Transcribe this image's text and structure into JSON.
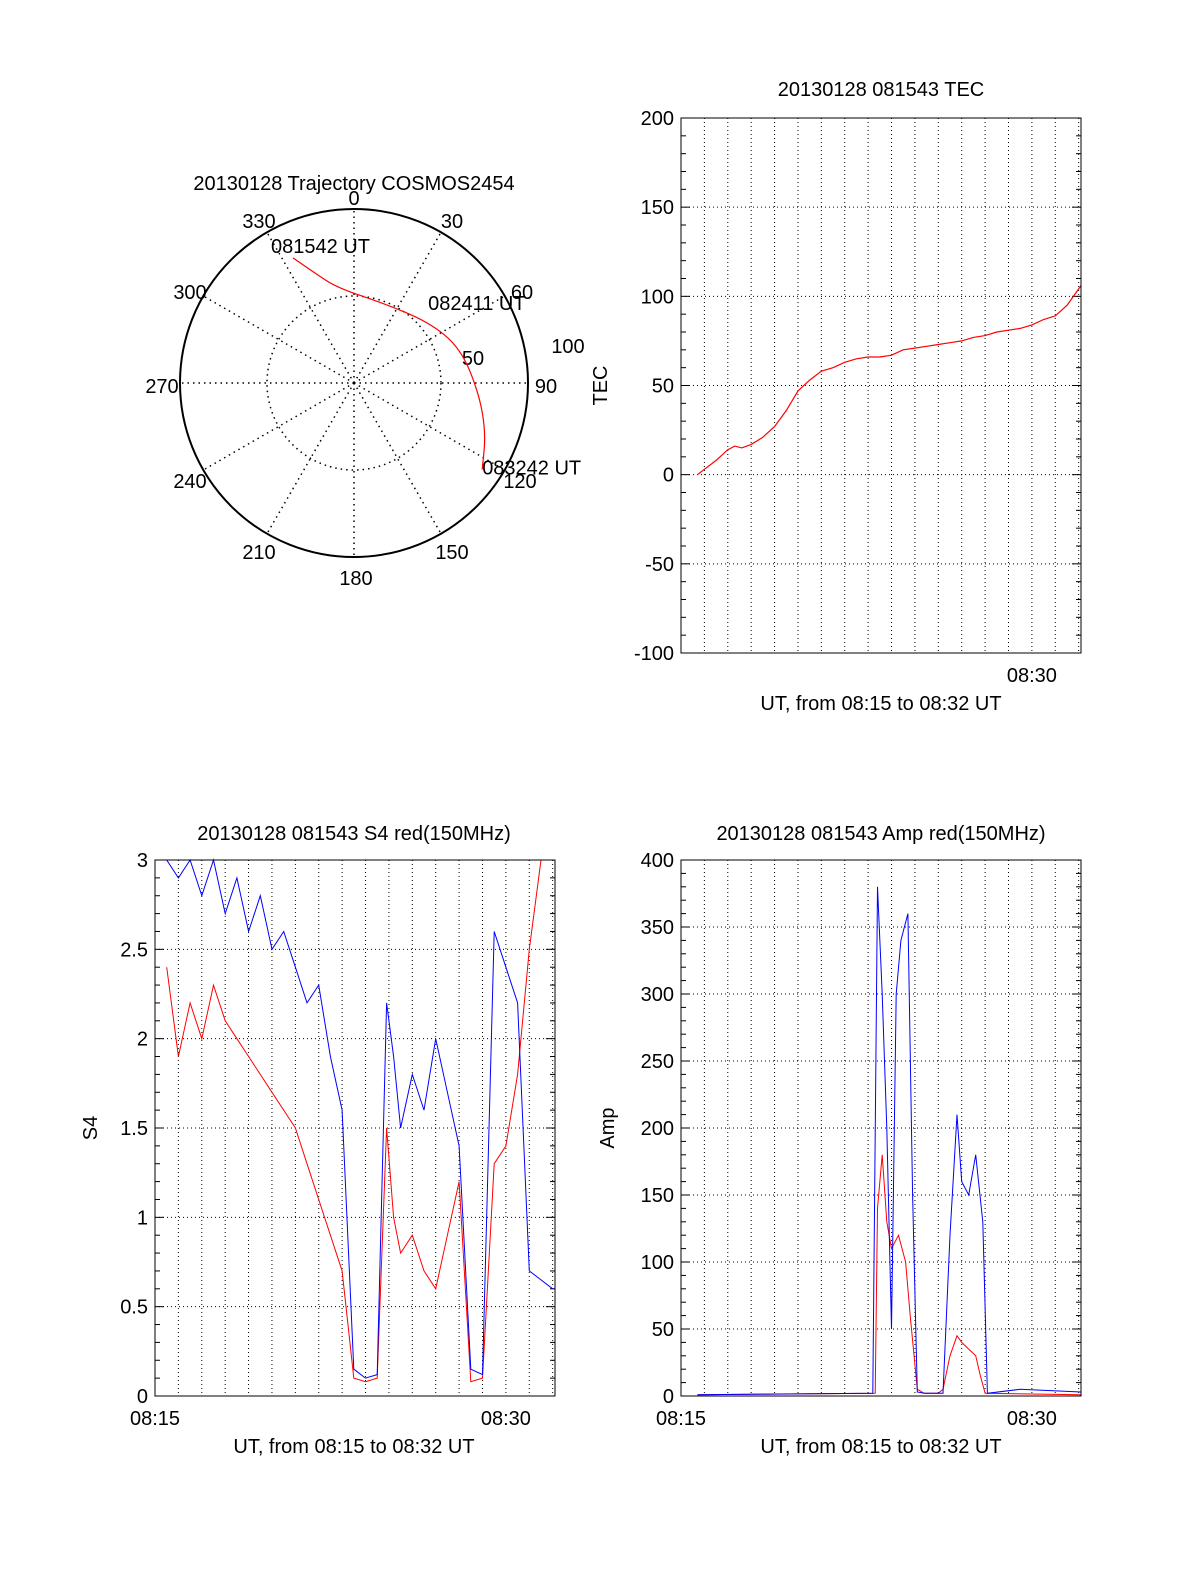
{
  "chart_data": [
    {
      "type": "polar",
      "title": "20130128 Trajectory COSMOS2454",
      "angle_labels": [
        "0",
        "30",
        "60",
        "90",
        "120",
        "150",
        "180",
        "210",
        "240",
        "270",
        "300",
        "330"
      ],
      "radius_labels": [
        "50",
        "100"
      ],
      "rlim": [
        0,
        100
      ],
      "series": [
        {
          "color": "#ff0000",
          "points": [
            {
              "azimuth": 334,
              "elevation": 18
            },
            {
              "azimuth": 340,
              "elevation": 29
            },
            {
              "azimuth": 350,
              "elevation": 40
            },
            {
              "azimuth": 18,
              "elevation": 46
            },
            {
              "azimuth": 51,
              "elevation": 40
            },
            {
              "azimuth": 72,
              "elevation": 32
            },
            {
              "azimuth": 95,
              "elevation": 25
            },
            {
              "azimuth": 111,
              "elevation": 17
            },
            {
              "azimuth": 124,
              "elevation": 10
            }
          ]
        }
      ],
      "annotations": [
        {
          "text": "081542 UT",
          "azimuth": 334,
          "elevation": 18
        },
        {
          "text": "082411 UT",
          "azimuth": 51,
          "elevation": 40
        },
        {
          "text": "083242 UT",
          "azimuth": 124,
          "elevation": 10
        }
      ],
      "grid": true
    },
    {
      "type": "line",
      "title": "20130128 081543 TEC",
      "xlabel": "UT, from 08:15 to 08:32 UT",
      "ylabel": "TEC",
      "xlim": [
        0,
        17.1
      ],
      "ylim": [
        -100,
        200
      ],
      "yticks": [
        200,
        150,
        100,
        50,
        0,
        -50,
        -100
      ],
      "xticks": [
        {
          "value": 15,
          "label": "08:30"
        }
      ],
      "grid": true,
      "series": [
        {
          "color": "#ff0000",
          "x": [
            0.7,
            1.0,
            1.5,
            2.0,
            2.3,
            2.6,
            3.0,
            3.5,
            4.0,
            4.5,
            5.0,
            5.5,
            6.0,
            6.5,
            7.0,
            7.5,
            8.0,
            8.5,
            9.0,
            9.5,
            10.0,
            10.5,
            11.0,
            11.5,
            12.0,
            12.5,
            13.0,
            13.5,
            14.0,
            14.5,
            15.0,
            15.5,
            16.0,
            16.5,
            17.1
          ],
          "y": [
            0,
            3,
            8,
            14,
            16,
            15,
            17,
            21,
            27,
            36,
            47,
            53,
            58,
            60,
            63,
            65,
            66,
            66,
            67,
            70,
            71,
            72,
            73,
            74,
            75,
            77,
            78,
            80,
            81,
            82,
            84,
            87,
            89,
            95,
            106
          ]
        }
      ]
    },
    {
      "type": "line",
      "title": "20130128 081543 S4 red(150MHz)",
      "xlabel": "UT, from 08:15 to 08:32 UT",
      "ylabel": "S4",
      "xlim": [
        0,
        17.1
      ],
      "ylim": [
        0,
        3
      ],
      "yticks": [
        3,
        2.5,
        2,
        1.5,
        1,
        0.5,
        0
      ],
      "ytick_labels": [
        "3",
        "2.5",
        "2",
        "1.5",
        "1",
        "0.5",
        "0"
      ],
      "xticks": [
        {
          "value": 0,
          "label": "08:15"
        },
        {
          "value": 15,
          "label": "08:30"
        }
      ],
      "grid": true,
      "series": [
        {
          "color": "#ff0000",
          "x": [
            0.5,
            1.0,
            1.5,
            2.0,
            2.5,
            3.0,
            3.5,
            4.0,
            4.5,
            5.0,
            5.5,
            6.0,
            6.5,
            7.0,
            7.5,
            8.0,
            8.5,
            9.0,
            9.5,
            9.9,
            10.2,
            10.5,
            11.0,
            11.5,
            12.0,
            12.5,
            13.0,
            13.5,
            14.0,
            14.5,
            15.0,
            15.5,
            16.0,
            16.5,
            17.0
          ],
          "y": [
            2.4,
            1.9,
            2.2,
            2.0,
            2.3,
            2.1,
            2.0,
            1.9,
            1.8,
            1.7,
            1.6,
            1.5,
            1.3,
            1.1,
            0.9,
            0.7,
            0.1,
            0.08,
            0.1,
            1.5,
            1.0,
            0.8,
            0.9,
            0.7,
            0.6,
            0.9,
            1.2,
            0.08,
            0.1,
            1.3,
            1.4,
            1.8,
            2.5,
            3.0,
            3.0
          ]
        },
        {
          "color": "#0000ff",
          "x": [
            0.5,
            1.0,
            1.5,
            2.0,
            2.5,
            3.0,
            3.5,
            4.0,
            4.5,
            5.0,
            5.5,
            6.0,
            6.5,
            7.0,
            7.5,
            8.0,
            8.5,
            9.0,
            9.5,
            9.9,
            10.2,
            10.5,
            11.0,
            11.5,
            12.0,
            12.5,
            13.0,
            13.5,
            14.0,
            14.5,
            15.0,
            15.5,
            16.0,
            16.5,
            17.0
          ],
          "y": [
            3.0,
            2.9,
            3.0,
            2.8,
            3.0,
            2.7,
            2.9,
            2.6,
            2.8,
            2.5,
            2.6,
            2.4,
            2.2,
            2.3,
            1.9,
            1.6,
            0.15,
            0.1,
            0.12,
            2.2,
            1.9,
            1.5,
            1.8,
            1.6,
            2.0,
            1.7,
            1.4,
            0.15,
            0.12,
            2.6,
            2.4,
            2.2,
            0.7,
            0.65,
            0.6
          ]
        }
      ]
    },
    {
      "type": "line",
      "title": "20130128 081543 Amp red(150MHz)",
      "xlabel": "UT, from 08:15 to 08:32 UT",
      "ylabel": "Amp",
      "xlim": [
        0,
        17.1
      ],
      "ylim": [
        0,
        400
      ],
      "yticks": [
        400,
        350,
        300,
        250,
        200,
        150,
        100,
        50,
        0
      ],
      "xticks": [
        {
          "value": 0,
          "label": "08:15"
        },
        {
          "value": 15,
          "label": "08:30"
        }
      ],
      "grid": true,
      "series": [
        {
          "color": "#ff0000",
          "x": [
            0.7,
            8.3,
            8.4,
            8.6,
            8.8,
            9.0,
            9.3,
            9.6,
            9.8,
            10.1,
            10.4,
            11.0,
            11.2,
            11.5,
            11.8,
            12.0,
            12.3,
            12.6,
            12.8,
            13.0,
            17.1
          ],
          "y": [
            1,
            2,
            140,
            180,
            130,
            110,
            120,
            100,
            60,
            5,
            2,
            2,
            5,
            30,
            45,
            40,
            35,
            30,
            15,
            2,
            1
          ]
        },
        {
          "color": "#0000ff",
          "x": [
            0.7,
            8.2,
            8.4,
            8.6,
            8.8,
            9.0,
            9.2,
            9.4,
            9.7,
            9.9,
            10.1,
            10.4,
            11.2,
            11.5,
            11.8,
            12.0,
            12.3,
            12.6,
            12.9,
            13.1,
            14.5,
            17.1
          ],
          "y": [
            1,
            2,
            380,
            300,
            200,
            50,
            300,
            340,
            360,
            150,
            3,
            2,
            2,
            120,
            210,
            160,
            150,
            180,
            130,
            2,
            5,
            3
          ]
        }
      ]
    }
  ]
}
